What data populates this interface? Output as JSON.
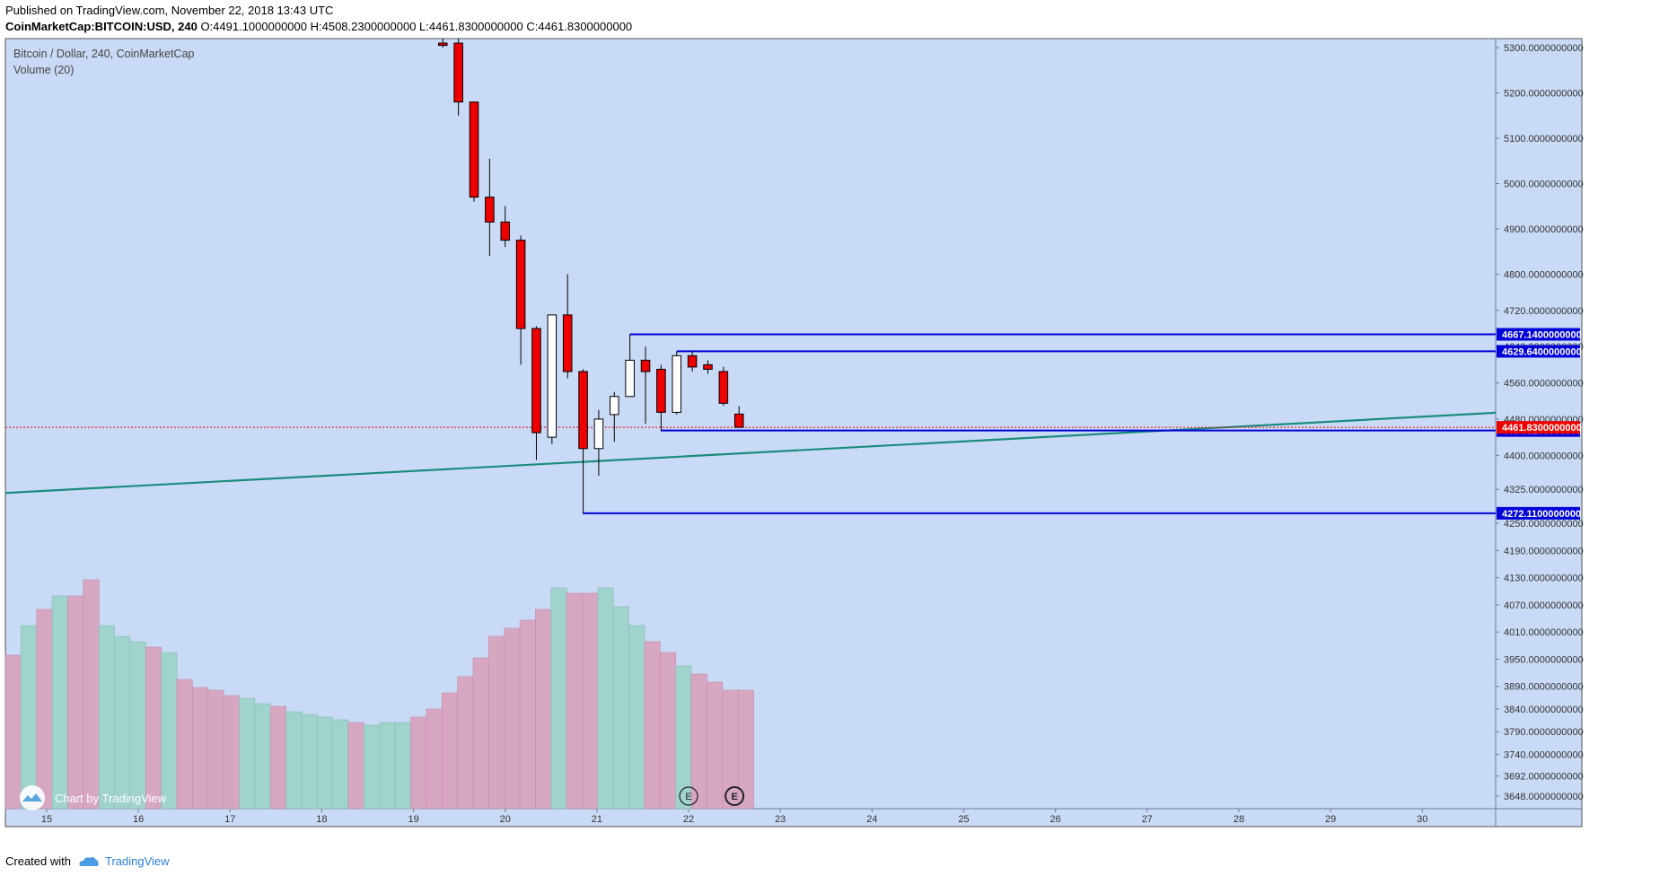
{
  "header": {
    "published": "Published on TradingView.com, November 22, 2018 13:43 UTC",
    "symbol": "CoinMarketCap:BITCOIN:USD, 240",
    "ohlc": "O:4491.1000000000 H:4508.2300000000 L:4461.8300000000 C:4461.8300000000"
  },
  "footer": {
    "created_with": "Created with",
    "brand": "TradingView"
  },
  "watermark": "Chart by TradingView",
  "colors": {
    "background": "#c9daf6",
    "up_fill": "#ffffff",
    "down_fill": "#ee0000",
    "vol_up": "#9fd3cb",
    "vol_down": "#d7a7c2",
    "level_line": "#0000d8",
    "trend_line": "#1a8c7c",
    "last_price": "#ee0000"
  },
  "chart_data": {
    "type": "candlestick",
    "title": "Bitcoin / Dollar, 240, CoinMarketCap",
    "volume_label": "Volume (20)",
    "ylim": [
      3620,
      5320
    ],
    "y_ticks": [
      "5300.0000000000",
      "5200.0000000000",
      "5100.0000000000",
      "5000.0000000000",
      "4900.0000000000",
      "4800.0000000000",
      "4720.0000000000",
      "4640.0000000000",
      "4560.0000000000",
      "4480.0000000000",
      "4400.0000000000",
      "4325.0000000000",
      "4250.0000000000",
      "4190.0000000000",
      "4130.0000000000",
      "4070.0000000000",
      "4010.0000000000",
      "3950.0000000000",
      "3890.0000000000",
      "3840.0000000000",
      "3790.0000000000",
      "3740.0000000000",
      "3692.0000000000",
      "3648.0000000000"
    ],
    "x_ticks": [
      "15",
      "16",
      "17",
      "18",
      "19",
      "20",
      "21",
      "22",
      "23",
      "24",
      "25",
      "26",
      "27",
      "28",
      "29",
      "30"
    ],
    "candles": [
      {
        "t": 19.32,
        "o": 5310,
        "h": 5320,
        "l": 5300,
        "c": 5305
      },
      {
        "t": 19.49,
        "o": 5310,
        "h": 5320,
        "l": 5150,
        "c": 5180
      },
      {
        "t": 19.66,
        "o": 5180,
        "h": 5180,
        "l": 4960,
        "c": 4970
      },
      {
        "t": 19.83,
        "o": 4970,
        "h": 5055,
        "l": 4840,
        "c": 4915
      },
      {
        "t": 20.0,
        "o": 4915,
        "h": 4950,
        "l": 4860,
        "c": 4875
      },
      {
        "t": 20.17,
        "o": 4875,
        "h": 4885,
        "l": 4600,
        "c": 4680
      },
      {
        "t": 20.34,
        "o": 4680,
        "h": 4685,
        "l": 4390,
        "c": 4450
      },
      {
        "t": 20.51,
        "o": 4440,
        "h": 4710,
        "l": 4425,
        "c": 4710
      },
      {
        "t": 20.68,
        "o": 4710,
        "h": 4800,
        "l": 4570,
        "c": 4585
      },
      {
        "t": 20.85,
        "o": 4585,
        "h": 4590,
        "l": 4272.11,
        "c": 4415
      },
      {
        "t": 21.02,
        "o": 4415,
        "h": 4500,
        "l": 4355,
        "c": 4480
      },
      {
        "t": 21.19,
        "o": 4490,
        "h": 4540,
        "l": 4430,
        "c": 4530
      },
      {
        "t": 21.36,
        "o": 4530,
        "h": 4667.14,
        "l": 4530,
        "c": 4610
      },
      {
        "t": 21.53,
        "o": 4610,
        "h": 4640,
        "l": 4470,
        "c": 4585
      },
      {
        "t": 21.7,
        "o": 4590,
        "h": 4600,
        "l": 4454.82,
        "c": 4495
      },
      {
        "t": 21.87,
        "o": 4495,
        "h": 4629.64,
        "l": 4490,
        "c": 4620
      },
      {
        "t": 22.04,
        "o": 4620,
        "h": 4629.64,
        "l": 4585,
        "c": 4595
      },
      {
        "t": 22.21,
        "o": 4600,
        "h": 4610,
        "l": 4580,
        "c": 4590
      },
      {
        "t": 22.38,
        "o": 4585,
        "h": 4595,
        "l": 4510,
        "c": 4515
      },
      {
        "t": 22.55,
        "o": 4491.1,
        "h": 4508.23,
        "l": 4461.83,
        "c": 4461.83
      }
    ],
    "volume": [
      {
        "t": 14.55,
        "up": false,
        "v": 0.57
      },
      {
        "t": 14.72,
        "up": true,
        "v": 0.68
      },
      {
        "t": 14.89,
        "up": false,
        "v": 0.74
      },
      {
        "t": 15.06,
        "up": true,
        "v": 0.79
      },
      {
        "t": 15.23,
        "up": false,
        "v": 0.79
      },
      {
        "t": 15.4,
        "up": false,
        "v": 0.85
      },
      {
        "t": 15.57,
        "up": true,
        "v": 0.68
      },
      {
        "t": 15.74,
        "up": true,
        "v": 0.64
      },
      {
        "t": 15.91,
        "up": true,
        "v": 0.62
      },
      {
        "t": 16.08,
        "up": false,
        "v": 0.6
      },
      {
        "t": 16.25,
        "up": true,
        "v": 0.58
      },
      {
        "t": 16.42,
        "up": false,
        "v": 0.48
      },
      {
        "t": 16.59,
        "up": false,
        "v": 0.45
      },
      {
        "t": 16.76,
        "up": false,
        "v": 0.44
      },
      {
        "t": 16.93,
        "up": false,
        "v": 0.42
      },
      {
        "t": 17.1,
        "up": true,
        "v": 0.41
      },
      {
        "t": 17.27,
        "up": true,
        "v": 0.39
      },
      {
        "t": 17.44,
        "up": false,
        "v": 0.38
      },
      {
        "t": 17.61,
        "up": true,
        "v": 0.36
      },
      {
        "t": 17.78,
        "up": true,
        "v": 0.35
      },
      {
        "t": 17.95,
        "up": true,
        "v": 0.34
      },
      {
        "t": 18.12,
        "up": true,
        "v": 0.33
      },
      {
        "t": 18.29,
        "up": false,
        "v": 0.32
      },
      {
        "t": 18.46,
        "up": true,
        "v": 0.31
      },
      {
        "t": 18.63,
        "up": true,
        "v": 0.32
      },
      {
        "t": 18.8,
        "up": true,
        "v": 0.32
      },
      {
        "t": 18.97,
        "up": false,
        "v": 0.34
      },
      {
        "t": 19.14,
        "up": false,
        "v": 0.37
      },
      {
        "t": 19.31,
        "up": false,
        "v": 0.43
      },
      {
        "t": 19.48,
        "up": false,
        "v": 0.49
      },
      {
        "t": 19.65,
        "up": false,
        "v": 0.56
      },
      {
        "t": 19.82,
        "up": false,
        "v": 0.64
      },
      {
        "t": 19.99,
        "up": false,
        "v": 0.67
      },
      {
        "t": 20.16,
        "up": false,
        "v": 0.7
      },
      {
        "t": 20.33,
        "up": false,
        "v": 0.74
      },
      {
        "t": 20.5,
        "up": true,
        "v": 0.82
      },
      {
        "t": 20.67,
        "up": false,
        "v": 0.8
      },
      {
        "t": 20.84,
        "up": false,
        "v": 0.8
      },
      {
        "t": 21.01,
        "up": true,
        "v": 0.82
      },
      {
        "t": 21.18,
        "up": true,
        "v": 0.75
      },
      {
        "t": 21.35,
        "up": true,
        "v": 0.68
      },
      {
        "t": 21.52,
        "up": false,
        "v": 0.62
      },
      {
        "t": 21.69,
        "up": false,
        "v": 0.58
      },
      {
        "t": 21.86,
        "up": true,
        "v": 0.53
      },
      {
        "t": 22.03,
        "up": false,
        "v": 0.5
      },
      {
        "t": 22.2,
        "up": false,
        "v": 0.47
      },
      {
        "t": 22.37,
        "up": false,
        "v": 0.44
      },
      {
        "t": 22.54,
        "up": false,
        "v": 0.44
      }
    ],
    "levels": [
      {
        "price": 4667.14,
        "label": "4667.1400000000",
        "from_t": 21.36
      },
      {
        "price": 4629.64,
        "label": "4629.6400000000",
        "from_t": 21.87
      },
      {
        "price": 4454.82,
        "label": "4454.8200000000",
        "from_t": 21.7
      },
      {
        "price": 4272.11,
        "label": "4272.1100000000",
        "from_t": 20.85
      }
    ],
    "last_price": {
      "price": 4461.83,
      "label": "4461.8300000000"
    },
    "trend_line": {
      "t1": 14.55,
      "p1": 4317,
      "t2": 30.8,
      "p2": 4494
    },
    "events": [
      {
        "t": 22.0,
        "label": "E",
        "bold": false
      },
      {
        "t": 22.5,
        "label": "E",
        "bold": true
      }
    ],
    "xlim": [
      14.55,
      30.8
    ]
  }
}
